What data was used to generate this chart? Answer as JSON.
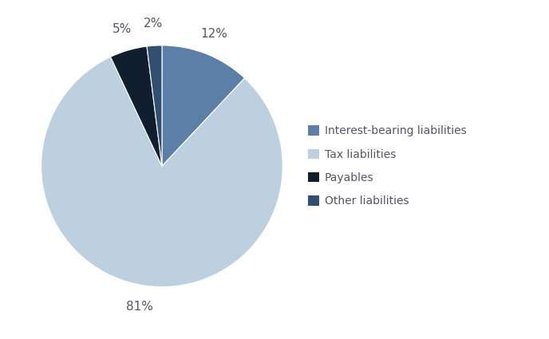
{
  "labels": [
    "Interest-bearing liabilities",
    "Tax liabilities",
    "Payables",
    "Other liabilities"
  ],
  "values": [
    12,
    81,
    5,
    2
  ],
  "colors": [
    "#5b7fa6",
    "#bdd0e0",
    "#111e2d",
    "#2f5070"
  ],
  "legend_colors": [
    "#5b7fa6",
    "#bdd0e0",
    "#111e2d",
    "#2f5070"
  ],
  "pct_labels": [
    "12%",
    "81%",
    "5%",
    "2%"
  ],
  "legend_labels": [
    "Interest-bearing liabilities",
    "Tax liabilities",
    "Payables",
    "Other liabilities"
  ],
  "text_color": "#555566",
  "background_color": "#ffffff",
  "font_size": 11,
  "legend_fontsize": 10,
  "pct_distance": 1.18
}
